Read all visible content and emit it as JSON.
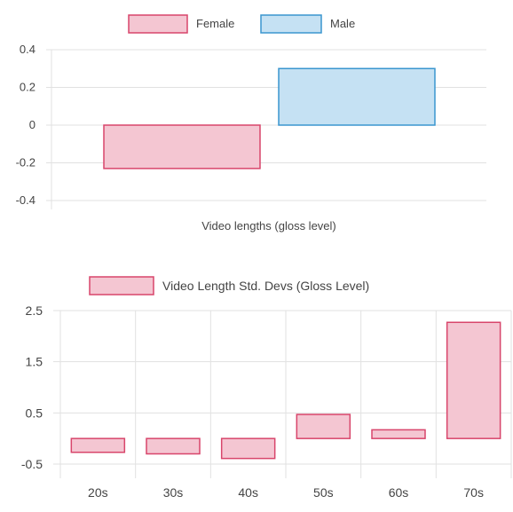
{
  "colors": {
    "female_fill": "#f4c6d2",
    "female_stroke": "#d8456b",
    "male_fill": "#c5e1f3",
    "male_stroke": "#3a96cf",
    "grid": "#e1e1e1",
    "text": "#444444"
  },
  "chart_data": [
    {
      "type": "bar",
      "title": "",
      "legend_position": "top",
      "categories": [
        "Video lengths (gloss level)"
      ],
      "xlabel": "",
      "ylabel": "",
      "ylim": [
        -0.4,
        0.4
      ],
      "yticks": [
        0.4,
        0.2,
        0,
        -0.2,
        -0.4
      ],
      "ytick_labels": [
        "0.4",
        "0.2",
        "0",
        "-0.2",
        "-0.4"
      ],
      "grid": true,
      "series": [
        {
          "name": "Female",
          "values": [
            -0.23
          ]
        },
        {
          "name": "Male",
          "values": [
            0.3
          ]
        }
      ]
    },
    {
      "type": "bar",
      "title": "",
      "legend_position": "top",
      "categories": [
        "20s",
        "30s",
        "40s",
        "50s",
        "60s",
        "70s"
      ],
      "xlabel": "",
      "ylabel": "",
      "ylim": [
        -0.5,
        2.5
      ],
      "yticks": [
        2.5,
        1.5,
        0.5,
        -0.5
      ],
      "ytick_labels": [
        "2.5",
        "1.5",
        "0.5",
        "-0.5"
      ],
      "grid": true,
      "series": [
        {
          "name": "Video Length Std. Devs (Gloss Level)",
          "values": [
            -0.27,
            -0.3,
            -0.39,
            0.47,
            0.17,
            2.27
          ]
        }
      ]
    }
  ]
}
